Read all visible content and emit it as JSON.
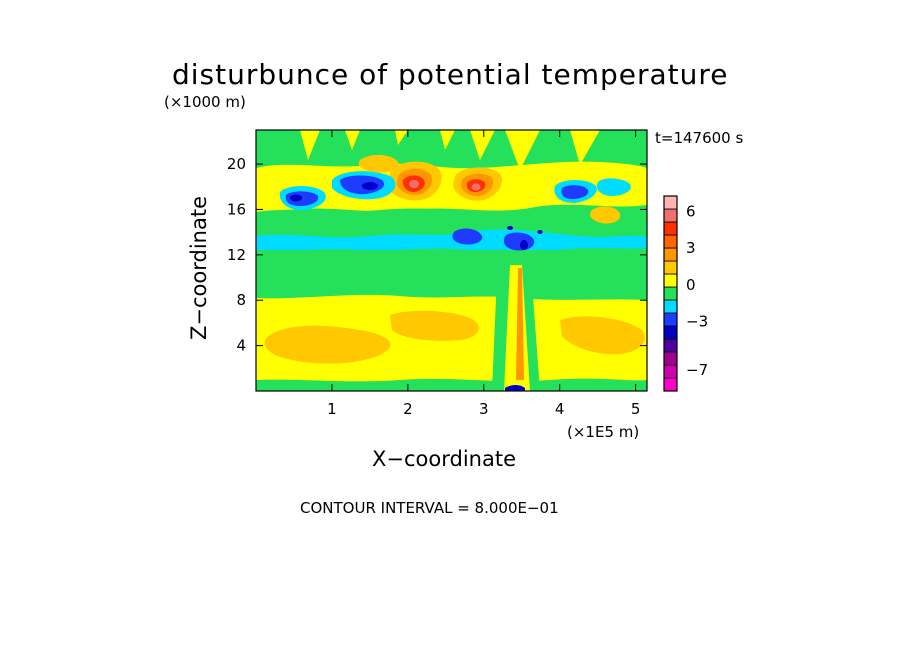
{
  "chart_data": {
    "type": "heatmap",
    "title": "disturbunce of potential temperature",
    "time_label": "t=147600 s",
    "xlabel": "X−coordinate",
    "ylabel": "Z−coordinate",
    "x_unit": "(×1E5 m)",
    "z_unit": "(×1000 m)",
    "contour_interval_label": "CONTOUR INTERVAL = 8.000E−01",
    "xlim": [
      0,
      5.15
    ],
    "ylim": [
      0,
      23
    ],
    "x_ticks": [
      "1",
      "2",
      "3",
      "4",
      "5"
    ],
    "y_ticks": [
      "4",
      "8",
      "12",
      "16",
      "20"
    ],
    "colorbar": {
      "tick_labels": [
        "6",
        "3",
        "0",
        "−3",
        "−7"
      ],
      "levels": [
        -8.8,
        -8.0,
        -7.2,
        -6.4,
        -5.6,
        -4.8,
        -4.0,
        -3.2,
        -2.4,
        -1.6,
        -0.8,
        0.0,
        0.8,
        1.6,
        2.4,
        3.2,
        4.0,
        4.8,
        5.6,
        6.4,
        7.2
      ],
      "colors": [
        "#ff00c8",
        "#d000b0",
        "#a00090",
        "#5000a0",
        "#0000c8",
        "#1e3cff",
        "#00dcff",
        "#24e05a",
        "#ffff00",
        "#ffc800",
        "#ff9600",
        "#ff6400",
        "#ff3000",
        "#f07070",
        "#ffb4b4"
      ]
    },
    "features": [
      {
        "label": "warm anomaly",
        "x": 2.1,
        "z": 18.2,
        "value": 3.5
      },
      {
        "label": "warm anomaly",
        "x": 2.85,
        "z": 17.6,
        "value": 3.2
      },
      {
        "label": "cold anomaly",
        "x": 1.5,
        "z": 18.0,
        "value": -3.2
      },
      {
        "label": "cold anomaly",
        "x": 0.6,
        "z": 16.8,
        "value": -3.0
      },
      {
        "label": "cold anomaly",
        "x": 4.1,
        "z": 17.2,
        "value": -2.6
      },
      {
        "label": "cold anomaly",
        "x": 3.3,
        "z": 13.4,
        "value": -2.8
      }
    ]
  }
}
